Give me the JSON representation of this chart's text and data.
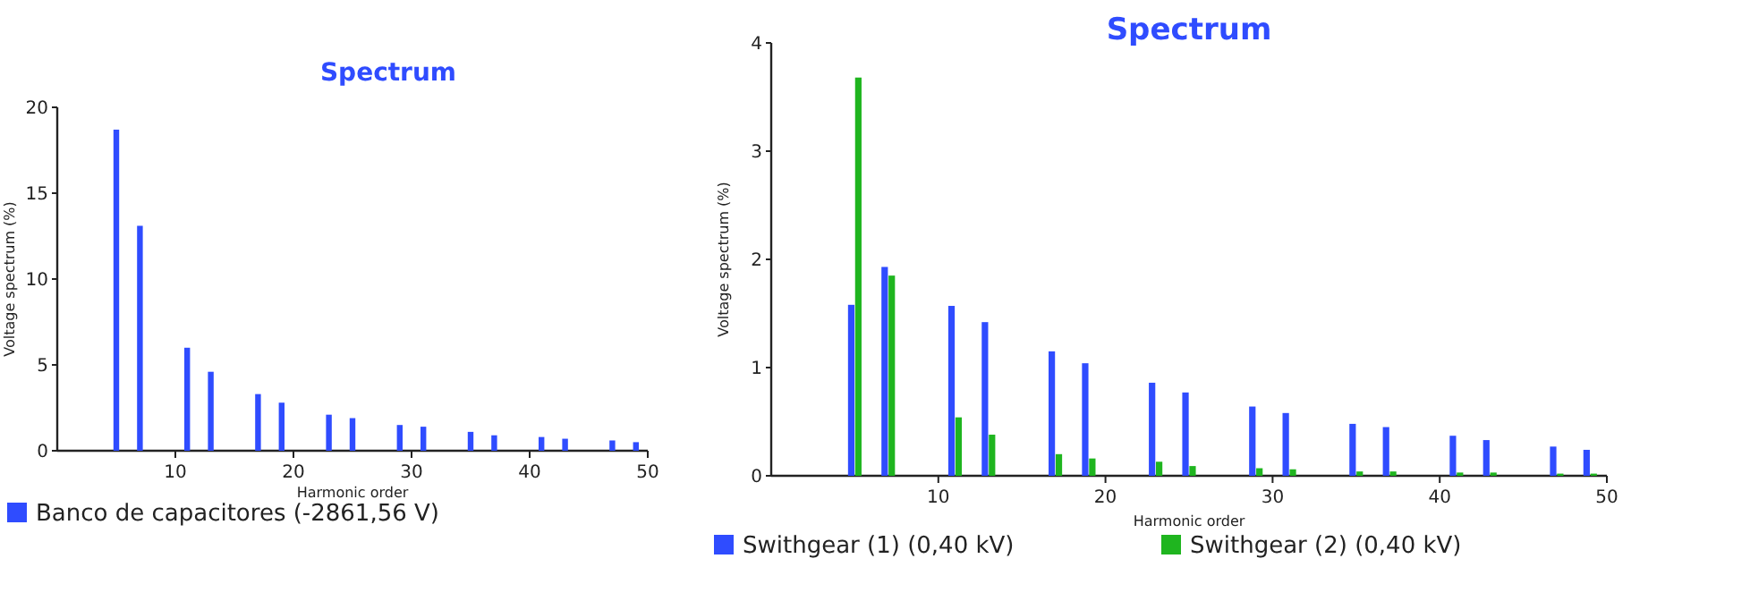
{
  "chart_data": [
    {
      "type": "bar",
      "title": "Spectrum",
      "xlabel": "Harmonic order",
      "ylabel": "Voltage spectrum (%)",
      "x": [
        5,
        7,
        11,
        13,
        17,
        19,
        23,
        25,
        29,
        31,
        35,
        37,
        41,
        43,
        47,
        49
      ],
      "xlim": [
        0,
        50
      ],
      "xticks": [
        10,
        20,
        30,
        40,
        50
      ],
      "ylim": [
        0,
        20
      ],
      "yticks": [
        0,
        5,
        10,
        15,
        20
      ],
      "legend": "bottom left",
      "series": [
        {
          "name": "Banco de capacitores (-2861,56 V)",
          "color": "#2f4cff",
          "values": [
            18.7,
            13.1,
            6.0,
            4.6,
            3.3,
            2.8,
            2.1,
            1.9,
            1.5,
            1.4,
            1.1,
            0.9,
            0.8,
            0.7,
            0.6,
            0.5
          ]
        }
      ]
    },
    {
      "type": "bar",
      "title": "Spectrum",
      "xlabel": "Harmonic order",
      "ylabel": "Voltage spectrum (%)",
      "x": [
        5,
        7,
        11,
        13,
        17,
        19,
        23,
        25,
        29,
        31,
        35,
        37,
        41,
        43,
        47,
        49
      ],
      "xlim": [
        0,
        50
      ],
      "xticks": [
        10,
        20,
        30,
        40,
        50
      ],
      "ylim": [
        0,
        4
      ],
      "yticks": [
        0,
        1,
        2,
        3,
        4
      ],
      "legend": "bottom left",
      "series": [
        {
          "name": "Swithgear (1) (0,40 kV)",
          "color": "#2f4cff",
          "values": [
            1.58,
            1.93,
            1.57,
            1.42,
            1.15,
            1.04,
            0.86,
            0.77,
            0.64,
            0.58,
            0.48,
            0.45,
            0.37,
            0.33,
            0.27,
            0.24
          ]
        },
        {
          "name": "Swithgear (2) (0,40 kV)",
          "color": "#1fb51f",
          "values": [
            3.68,
            1.85,
            0.54,
            0.38,
            0.2,
            0.16,
            0.13,
            0.09,
            0.07,
            0.06,
            0.04,
            0.04,
            0.03,
            0.03,
            0.02,
            0.02
          ]
        }
      ]
    }
  ]
}
